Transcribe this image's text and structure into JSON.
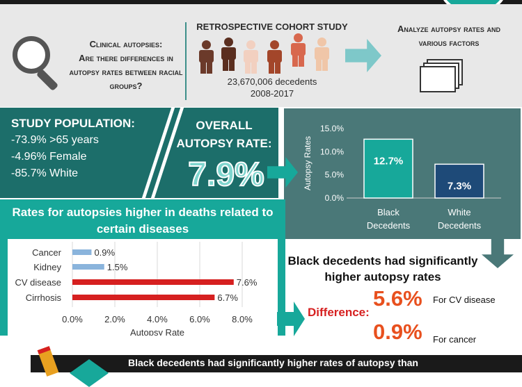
{
  "header": {
    "question_title": "Clinical autopsies:",
    "question_body": "Are there differences in autopsy rates between racial groups?",
    "cohort_title": "RETROSPECTIVE COHORT STUDY",
    "cohort_count": "23,670,006 decedents",
    "cohort_years": "2008-2017",
    "analyze_text": "Analyze autopsy rates and various factors",
    "people_colors": [
      "#6b3a2a",
      "#5a2e1f",
      "#f2d0c0",
      "#a3462a",
      "#d8684e",
      "#f0c6a8"
    ]
  },
  "study": {
    "title": "STUDY POPULATION:",
    "lines": [
      "-73.9% >65 years",
      "-4.96% Female",
      "-85.7% White"
    ]
  },
  "overall": {
    "title": "OVERALL AUTOPSY RATE:",
    "value": "7.9%"
  },
  "chart_data": [
    {
      "type": "bar",
      "categories": [
        "Black Decedents",
        "White Decedents"
      ],
      "category_lines": [
        [
          "Black",
          "Decedents"
        ],
        [
          "White",
          "Decedents"
        ]
      ],
      "values": [
        12.7,
        7.3
      ],
      "data_labels": [
        "12.7%",
        "7.3%"
      ],
      "ylabel": "Autopsy Rates",
      "ylim": [
        0,
        15
      ],
      "ticks": [
        0,
        5,
        10,
        15
      ],
      "tick_labels": [
        "0.0%",
        "5.0%",
        "10.0%",
        "15.0%"
      ],
      "colors": [
        "#17a89a",
        "#1e4a78"
      ],
      "grid": false
    },
    {
      "type": "bar",
      "orientation": "horizontal",
      "title": "Rates for autopsies higher in deaths related to certain diseases",
      "categories": [
        "Cancer",
        "Kidney",
        "CV disease",
        "Cirrhosis"
      ],
      "values": [
        0.9,
        1.5,
        7.6,
        6.7
      ],
      "data_labels": [
        "0.9%",
        "1.5%",
        "7.6%",
        "6.7%"
      ],
      "colors": [
        "#8ab4dc",
        "#8ab4dc",
        "#d62020",
        "#d62020"
      ],
      "xlabel": "Autopsy Rate",
      "xlim": [
        0,
        8
      ],
      "ticks": [
        0,
        2,
        4,
        6,
        8
      ],
      "tick_labels": [
        "0.0%",
        "2.0%",
        "4.0%",
        "6.0%",
        "8.0%"
      ],
      "grid": true
    }
  ],
  "results": {
    "title": "Black decedents had significantly higher autopsy rates",
    "difference_label": "Difference:",
    "items": [
      {
        "value": "5.6%",
        "note": "For CV disease"
      },
      {
        "value": "0.9%",
        "note": "For cancer"
      }
    ]
  },
  "footer": {
    "text": "Black decedents had significantly higher rates of autopsy than"
  }
}
